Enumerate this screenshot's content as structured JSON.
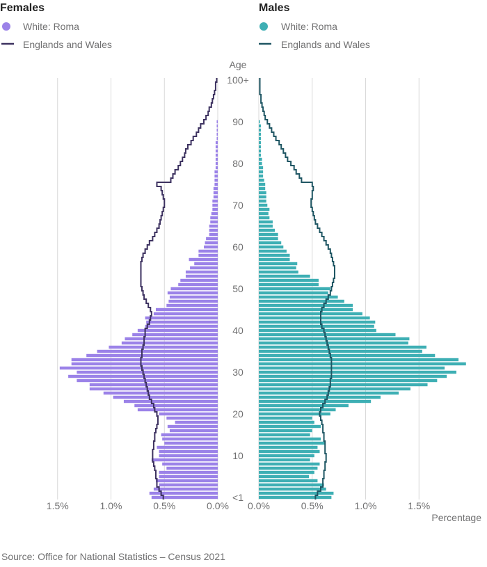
{
  "source": "Source: Office for National Statistics – Census 2021",
  "colors": {
    "female_bar": "#9b82e8",
    "female_line": "#3d3260",
    "male_bar": "#3eafb4",
    "male_line": "#1f5663",
    "grid": "#d9d9d9",
    "text": "#414042",
    "muted": "#707071"
  },
  "chart_data": [
    {
      "type": "bar",
      "orientation": "horizontal",
      "title": "Females",
      "ylabel": "Age",
      "xlabel": "",
      "xlim": [
        1.5,
        0.0
      ],
      "x_direction": "reversed",
      "x_ticks": [
        "1.5%",
        "1.0%",
        "0.5%",
        "0.0%"
      ],
      "y_ticks": [
        "100+",
        "90",
        "80",
        "70",
        "60",
        "50",
        "40",
        "30",
        "20",
        "10",
        "<1"
      ],
      "legend": [
        "White: Roma",
        "Englands and Wales"
      ],
      "ages": "0 to 100+",
      "series": [
        {
          "name": "White: Roma",
          "kind": "bar",
          "values": [
            0.62,
            0.64,
            0.6,
            0.55,
            0.58,
            0.55,
            0.55,
            0.48,
            0.52,
            0.62,
            0.55,
            0.55,
            0.57,
            0.5,
            0.52,
            0.53,
            0.45,
            0.47,
            0.4,
            0.48,
            0.55,
            0.75,
            0.78,
            0.88,
            0.98,
            1.07,
            1.2,
            1.2,
            1.32,
            1.4,
            1.32,
            1.48,
            1.37,
            1.37,
            1.23,
            1.13,
            1.02,
            0.9,
            0.87,
            0.8,
            0.75,
            0.68,
            0.67,
            0.68,
            0.6,
            0.58,
            0.48,
            0.46,
            0.45,
            0.47,
            0.44,
            0.37,
            0.35,
            0.3,
            0.3,
            0.26,
            0.22,
            0.27,
            0.18,
            0.18,
            0.13,
            0.12,
            0.11,
            0.08,
            0.08,
            0.08,
            0.07,
            0.07,
            0.06,
            0.05,
            0.05,
            0.05,
            0.04,
            0.04,
            0.04,
            0.03,
            0.03,
            0.03,
            0.03,
            0.02,
            0.02,
            0.02,
            0.02,
            0.02,
            0.02,
            0.02,
            0.01,
            0.01,
            0.01,
            0.01,
            0.01
          ],
          "color": "#9b82e8"
        },
        {
          "name": "Englands and Wales",
          "kind": "step-line",
          "values": [
            0.51,
            0.53,
            0.55,
            0.57,
            0.57,
            0.58,
            0.58,
            0.59,
            0.6,
            0.61,
            0.61,
            0.61,
            0.6,
            0.6,
            0.59,
            0.59,
            0.58,
            0.57,
            0.56,
            0.56,
            0.57,
            0.59,
            0.6,
            0.62,
            0.64,
            0.65,
            0.66,
            0.67,
            0.68,
            0.69,
            0.7,
            0.71,
            0.72,
            0.72,
            0.71,
            0.71,
            0.7,
            0.69,
            0.69,
            0.68,
            0.68,
            0.66,
            0.64,
            0.63,
            0.62,
            0.63,
            0.65,
            0.67,
            0.69,
            0.7,
            0.71,
            0.72,
            0.72,
            0.72,
            0.72,
            0.72,
            0.72,
            0.71,
            0.7,
            0.68,
            0.66,
            0.64,
            0.61,
            0.59,
            0.57,
            0.55,
            0.54,
            0.53,
            0.52,
            0.51,
            0.5,
            0.5,
            0.51,
            0.52,
            0.53,
            0.57,
            0.44,
            0.42,
            0.4,
            0.37,
            0.35,
            0.33,
            0.31,
            0.3,
            0.28,
            0.25,
            0.23,
            0.2,
            0.18,
            0.16,
            0.13,
            0.11,
            0.09,
            0.08,
            0.06,
            0.05,
            0.04,
            0.03,
            0.02,
            0.02,
            0.01
          ],
          "color": "#3d3260"
        }
      ]
    },
    {
      "type": "bar",
      "orientation": "horizontal",
      "title": "Males",
      "ylabel": "Age",
      "xlabel": "Percentage",
      "xlim": [
        0.0,
        1.95
      ],
      "x_ticks": [
        "0.0%",
        "0.5%",
        "1.0%",
        "1.5%"
      ],
      "y_ticks": [
        "100+",
        "90",
        "80",
        "70",
        "60",
        "50",
        "40",
        "30",
        "20",
        "10",
        "<1"
      ],
      "legend": [
        "White: Roma",
        "Englands and Wales"
      ],
      "ages": "0 to 100+",
      "series": [
        {
          "name": "White: Roma",
          "kind": "bar",
          "values": [
            0.68,
            0.7,
            0.63,
            0.61,
            0.55,
            0.47,
            0.52,
            0.55,
            0.57,
            0.48,
            0.52,
            0.57,
            0.55,
            0.62,
            0.58,
            0.48,
            0.5,
            0.58,
            0.52,
            0.5,
            0.67,
            0.72,
            0.84,
            1.05,
            1.14,
            1.31,
            1.42,
            1.58,
            1.67,
            1.76,
            1.85,
            1.74,
            1.94,
            1.87,
            1.65,
            1.53,
            1.57,
            1.4,
            1.41,
            1.28,
            1.1,
            1.08,
            1.09,
            1.04,
            0.97,
            0.88,
            0.88,
            0.8,
            0.74,
            0.65,
            0.67,
            0.56,
            0.56,
            0.48,
            0.37,
            0.35,
            0.36,
            0.29,
            0.29,
            0.26,
            0.23,
            0.21,
            0.18,
            0.18,
            0.15,
            0.13,
            0.13,
            0.1,
            0.09,
            0.1,
            0.08,
            0.07,
            0.07,
            0.07,
            0.06,
            0.06,
            0.05,
            0.04,
            0.04,
            0.04,
            0.03,
            0.03,
            0.02,
            0.02,
            0.02,
            0.02,
            0.02,
            0.02,
            0.02,
            0.02,
            0.01
          ],
          "color": "#3eafb4"
        },
        {
          "name": "Englands and Wales",
          "kind": "step-line",
          "values": [
            0.53,
            0.55,
            0.58,
            0.6,
            0.6,
            0.61,
            0.61,
            0.62,
            0.62,
            0.63,
            0.63,
            0.62,
            0.62,
            0.62,
            0.61,
            0.61,
            0.6,
            0.6,
            0.59,
            0.58,
            0.57,
            0.58,
            0.6,
            0.62,
            0.64,
            0.65,
            0.66,
            0.67,
            0.67,
            0.68,
            0.68,
            0.68,
            0.68,
            0.68,
            0.67,
            0.66,
            0.65,
            0.64,
            0.63,
            0.62,
            0.61,
            0.59,
            0.58,
            0.58,
            0.58,
            0.59,
            0.61,
            0.63,
            0.65,
            0.67,
            0.68,
            0.69,
            0.7,
            0.71,
            0.71,
            0.71,
            0.7,
            0.69,
            0.68,
            0.67,
            0.65,
            0.63,
            0.61,
            0.59,
            0.57,
            0.55,
            0.53,
            0.52,
            0.51,
            0.5,
            0.49,
            0.49,
            0.5,
            0.5,
            0.51,
            0.5,
            0.4,
            0.38,
            0.35,
            0.33,
            0.3,
            0.27,
            0.25,
            0.23,
            0.21,
            0.19,
            0.16,
            0.14,
            0.12,
            0.1,
            0.08,
            0.06,
            0.05,
            0.04,
            0.03,
            0.02,
            0.02,
            0.01,
            0.01,
            0.01,
            0.01
          ],
          "color": "#1f5663"
        }
      ]
    }
  ]
}
